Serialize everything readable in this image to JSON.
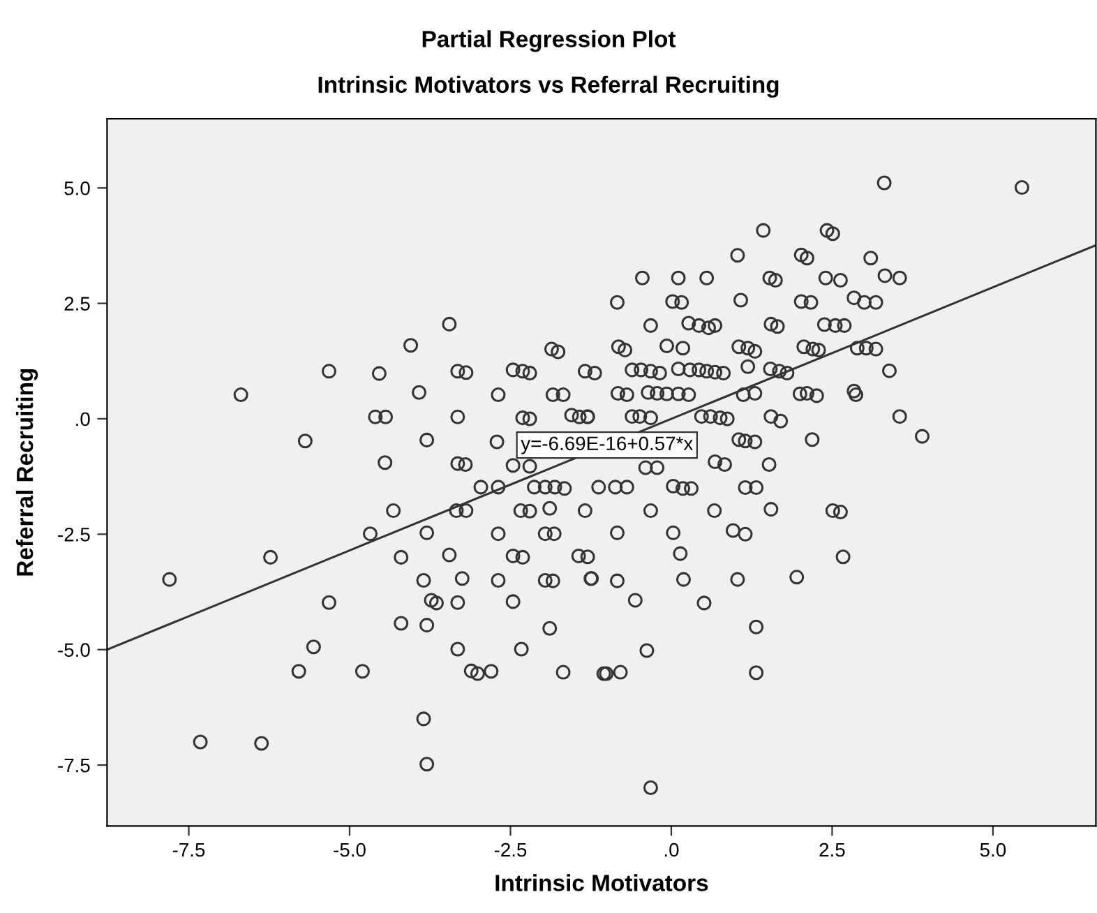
{
  "chart_data": {
    "type": "scatter",
    "title": "Partial Regression Plot",
    "subtitle": "Intrinsic Motivators vs Referral Recruiting",
    "xlabel": "Intrinsic Motivators",
    "ylabel": "Referral Recruiting",
    "xlim": [
      -8.77,
      6.6
    ],
    "ylim": [
      -8.82,
      6.5
    ],
    "xticks": [
      {
        "value": -7.5,
        "label": "-7.5"
      },
      {
        "value": -5,
        "label": "-5.0"
      },
      {
        "value": -2.5,
        "label": "-2.5"
      },
      {
        "value": 0,
        "label": ".0"
      },
      {
        "value": 2.5,
        "label": "2.5"
      },
      {
        "value": 5,
        "label": "5.0"
      }
    ],
    "yticks": [
      {
        "value": -7.5,
        "label": "-7.5"
      },
      {
        "value": -5,
        "label": "-5.0"
      },
      {
        "value": -2.5,
        "label": "-2.5"
      },
      {
        "value": 0,
        "label": ".0"
      },
      {
        "value": 2.5,
        "label": "2.5"
      },
      {
        "value": 5,
        "label": "5.0"
      }
    ],
    "grid": false,
    "annotations": [
      {
        "text": "y=-6.69E-16+0.57*x",
        "x": -1.0,
        "y": -0.57
      }
    ],
    "series": [
      {
        "color": "#333333",
        "type": "scatter",
        "marker": "circle",
        "x": [
          -6.69,
          -5.32,
          -4.54,
          -3.45,
          -4.05,
          -3.92,
          -3.32,
          -3.19,
          -5.69,
          -4.6,
          -4.44,
          -3.8,
          -4.45,
          -3.32,
          -3.32,
          -3.2,
          -2.69,
          -2.46,
          -2.31,
          -2.2,
          -1.86,
          -1.76,
          -1.84,
          -1.68,
          -1.34,
          -1.19,
          -2.31,
          -2.2,
          -1.55,
          -1.43,
          -1.3,
          -2.71,
          3.31,
          5.45,
          1.43,
          2.42,
          2.51,
          1.03,
          2.02,
          2.11,
          3.1,
          -0.45,
          0.11,
          0.55,
          1.53,
          1.62,
          2.4,
          2.63,
          3.32,
          3.55,
          -0.84,
          0.02,
          0.16,
          1.08,
          2.02,
          2.17,
          2.84,
          3.0,
          3.18,
          -0.32,
          0.27,
          0.43,
          0.58,
          0.68,
          1.55,
          1.65,
          2.38,
          2.55,
          2.69,
          -0.82,
          -0.72,
          -0.07,
          0.18,
          1.05,
          1.19,
          1.3,
          2.06,
          2.2,
          2.29,
          2.89,
          3.03,
          3.18,
          -0.61,
          -0.47,
          -0.32,
          -0.18,
          0.11,
          0.29,
          0.43,
          0.55,
          0.68,
          0.81,
          1.19,
          1.54,
          1.68,
          1.8,
          3.39,
          -0.83,
          -0.69,
          -0.36,
          -0.22,
          -0.07,
          0.11,
          0.27,
          1.12,
          1.3,
          2.0,
          2.11,
          2.26,
          2.84,
          2.87,
          -1.3,
          -0.61,
          -0.49,
          -0.32,
          0.47,
          0.61,
          0.76,
          0.87,
          1.55,
          1.7,
          3.55,
          1.05,
          1.15,
          1.3,
          2.19,
          3.9,
          1.52,
          0.68,
          0.83,
          -7.8,
          -6.23,
          -5.32,
          -5.56,
          -5.79,
          -4.8,
          -7.32,
          -6.37,
          -4.68,
          -4.32,
          -3.8,
          -4.2,
          -3.45,
          -3.85,
          -3.25,
          -3.73,
          -3.65,
          -3.32,
          -4.2,
          -3.8,
          -3.32,
          -3.11,
          -3.01,
          -2.8,
          -3.85,
          -3.8,
          -2.96,
          -2.69,
          -3.34,
          -3.19,
          -2.69,
          -2.46,
          -2.31,
          -2.69,
          -2.46,
          -2.33,
          -2.13,
          -1.96,
          -1.81,
          -1.66,
          -2.34,
          -2.2,
          -1.89,
          -1.34,
          -1.96,
          -1.82,
          -1.44,
          -1.3,
          -1.96,
          -1.84,
          -1.24,
          -1.89,
          -1.68,
          -1.13,
          -1.05,
          -0.87,
          -0.69,
          0.03,
          0.18,
          0.31,
          1.15,
          1.32,
          -0.32,
          0.67,
          1.55,
          2.51,
          2.63,
          -0.84,
          0.03,
          0.96,
          1.15,
          0.14,
          2.67,
          -1.25,
          -0.84,
          0.19,
          1.03,
          1.95,
          -0.56,
          0.51,
          1.32,
          -0.38,
          -1.01,
          -0.79,
          1.32,
          -0.32,
          -2.46,
          -2.2,
          -0.4,
          -0.22
        ],
        "values": [
          0.52,
          1.03,
          0.98,
          2.05,
          1.59,
          0.57,
          1.03,
          1.0,
          -0.48,
          0.04,
          0.04,
          -0.46,
          -0.95,
          0.04,
          -0.97,
          -0.99,
          0.52,
          1.06,
          1.03,
          0.99,
          1.51,
          1.45,
          0.52,
          0.52,
          1.03,
          0.99,
          0.02,
          0,
          0.08,
          0.04,
          0.04,
          -0.5,
          5.11,
          5.01,
          4.08,
          4.08,
          4.01,
          3.54,
          3.55,
          3.48,
          3.48,
          3.05,
          3.05,
          3.05,
          3.05,
          3.0,
          3.05,
          3.0,
          3.1,
          3.05,
          2.52,
          2.54,
          2.52,
          2.57,
          2.54,
          2.52,
          2.62,
          2.52,
          2.52,
          2.02,
          2.07,
          2.02,
          1.97,
          2.02,
          2.05,
          2.0,
          2.04,
          2.02,
          2.02,
          1.56,
          1.49,
          1.58,
          1.53,
          1.56,
          1.53,
          1.46,
          1.56,
          1.51,
          1.49,
          1.53,
          1.53,
          1.51,
          1.06,
          1.06,
          1.03,
          0.99,
          1.08,
          1.06,
          1.06,
          1.03,
          1.01,
          0.99,
          1.13,
          1.08,
          1.03,
          0.99,
          1.04,
          0.55,
          0.52,
          0.57,
          0.55,
          0.54,
          0.54,
          0.52,
          0.52,
          0.55,
          0.54,
          0.55,
          0.5,
          0.6,
          0.52,
          0.05,
          0.05,
          0.05,
          0.02,
          0.05,
          0.05,
          0.02,
          0,
          0.05,
          -0.05,
          0.05,
          -0.45,
          -0.48,
          -0.5,
          -0.45,
          -0.38,
          -0.99,
          -0.93,
          -0.99,
          -3.48,
          -3.0,
          -3.98,
          -4.94,
          -5.47,
          -5.47,
          -7.0,
          -7.03,
          -2.49,
          -1.99,
          -2.47,
          -3.0,
          -2.95,
          -3.5,
          -3.46,
          -3.93,
          -3.99,
          -3.98,
          -4.43,
          -4.47,
          -4.99,
          -5.46,
          -5.52,
          -5.47,
          -6.5,
          -7.48,
          -1.48,
          -1.48,
          -1.99,
          -1.99,
          -2.49,
          -2.97,
          -3.0,
          -3.5,
          -3.96,
          -4.99,
          -1.48,
          -1.48,
          -1.48,
          -1.51,
          -1.99,
          -2.0,
          -1.94,
          -1.99,
          -2.49,
          -2.49,
          -2.97,
          -2.99,
          -3.5,
          -3.51,
          -3.46,
          -4.54,
          -5.49,
          -1.48,
          -5.52,
          -1.48,
          -1.48,
          -1.46,
          -1.51,
          -1.51,
          -1.49,
          -1.49,
          -1.99,
          -1.99,
          -1.96,
          -1.99,
          -2.02,
          -2.47,
          -2.47,
          -2.42,
          -2.5,
          -2.92,
          -2.99,
          -3.46,
          -3.51,
          -3.48,
          -3.48,
          -3.43,
          -3.93,
          -3.99,
          -4.51,
          -5.02,
          -5.52,
          -5.49,
          -5.5,
          -7.99,
          -1.01,
          -1.03,
          -1.06,
          -1.06
        ]
      },
      {
        "color": "#333333",
        "type": "line",
        "x": [
          -8.77,
          6.6
        ],
        "values": [
          -5.0,
          3.76
        ]
      }
    ]
  }
}
